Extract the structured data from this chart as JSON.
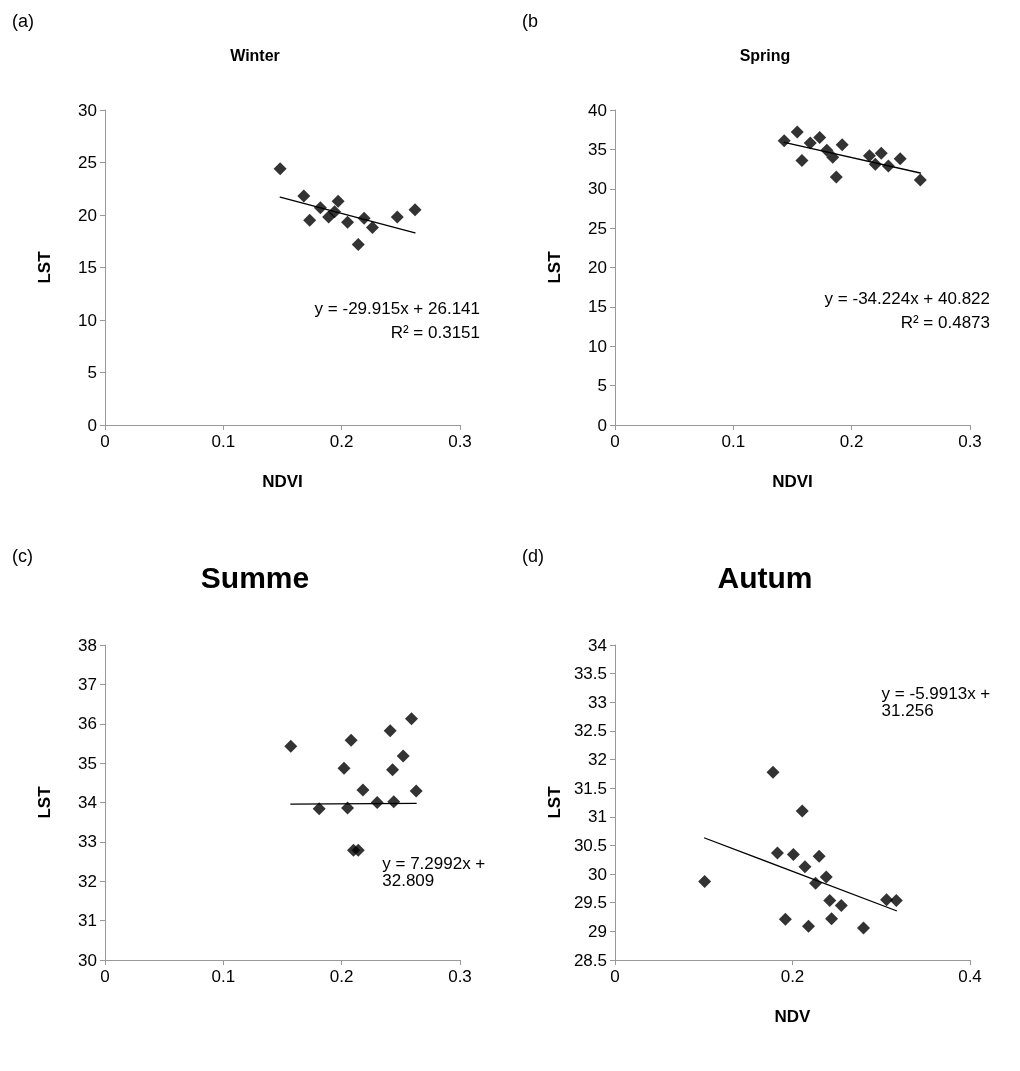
{
  "chart_data": [
    {
      "type": "scatter",
      "title": "Winter",
      "xlabel": "NDVI",
      "ylabel": "LST",
      "xlim": [
        0,
        0.3
      ],
      "xticks": [
        0,
        0.1,
        0.2,
        0.3
      ],
      "ylim": [
        0,
        30
      ],
      "yticks": [
        0,
        5,
        10,
        15,
        20,
        25,
        30
      ],
      "annotations": [
        "(a)",
        "y = -29.915x + 26.141",
        "R² = 0.3151"
      ],
      "series": [
        {
          "marker": "diamond",
          "color": "#000000",
          "x": [
            0.148,
            0.168,
            0.173,
            0.182,
            0.189,
            0.194,
            0.197,
            0.205,
            0.214,
            0.219,
            0.226,
            0.247,
            0.262
          ],
          "values": [
            24.4,
            21.8,
            19.5,
            20.7,
            19.8,
            20.3,
            21.3,
            19.3,
            17.2,
            19.7,
            18.8,
            19.8,
            20.5
          ]
        },
        {
          "type": "line",
          "marker": "none",
          "color": "#000000",
          "x": [
            0.148,
            0.262
          ],
          "values": [
            21.7,
            18.3
          ]
        }
      ]
    },
    {
      "type": "scatter",
      "title": "Spring",
      "xlabel": "NDVI",
      "ylabel": "LST",
      "xlim": [
        0,
        0.3
      ],
      "xticks": [
        0,
        0.1,
        0.2,
        0.3
      ],
      "ylim": [
        0,
        40
      ],
      "yticks": [
        0,
        5,
        10,
        15,
        20,
        25,
        30,
        35,
        40
      ],
      "annotations": [
        "(b",
        "y = -34.224x + 40.822",
        "R² = 0.4873"
      ],
      "series": [
        {
          "marker": "diamond",
          "color": "#000000",
          "x": [
            0.143,
            0.154,
            0.158,
            0.165,
            0.173,
            0.179,
            0.184,
            0.187,
            0.192,
            0.215,
            0.22,
            0.225,
            0.231,
            0.241,
            0.258
          ],
          "values": [
            36.1,
            37.2,
            33.6,
            35.8,
            36.5,
            34.9,
            34.0,
            31.5,
            35.6,
            34.2,
            33.1,
            34.5,
            32.9,
            33.8,
            31.1
          ]
        },
        {
          "type": "line",
          "marker": "none",
          "color": "#000000",
          "x": [
            0.143,
            0.258
          ],
          "values": [
            35.9,
            32.0
          ]
        }
      ]
    },
    {
      "type": "scatter",
      "title": "Summe",
      "ylabel": "LST",
      "xlim": [
        0,
        0.3
      ],
      "xticks": [
        0,
        0.1,
        0.2,
        0.3
      ],
      "ylim": [
        30,
        38
      ],
      "yticks": [
        30,
        31,
        32,
        33,
        34,
        35,
        36,
        37,
        38
      ],
      "annotations": [
        "(c)",
        "y = 7.2992x + 32.809"
      ],
      "series": [
        {
          "marker": "diamond",
          "color": "#000000",
          "x": [
            0.157,
            0.181,
            0.202,
            0.203,
            0.205,
            0.208,
            0.21,
            0.214,
            0.218,
            0.23,
            0.241,
            0.243,
            0.244,
            0.252,
            0.259,
            0.263
          ],
          "values": [
            35.43,
            33.84,
            34.87,
            null,
            33.86,
            35.58,
            32.79,
            32.79,
            34.32,
            34.0,
            35.82,
            34.83,
            34.02,
            35.18,
            36.13,
            34.29
          ]
        },
        {
          "type": "line",
          "marker": "none",
          "color": "#000000",
          "x": [
            0.157,
            0.263
          ],
          "values": [
            33.96,
            33.98
          ]
        }
      ]
    },
    {
      "type": "scatter",
      "title": "Autum",
      "xlabel": "NDV",
      "ylabel": "LST",
      "xlim": [
        0,
        0.4
      ],
      "xticks": [
        0,
        0.2,
        0.4
      ],
      "ylim": [
        28.5,
        34
      ],
      "yticks": [
        28.5,
        29,
        29.5,
        30,
        30.5,
        31,
        31.5,
        32,
        32.5,
        33,
        33.5,
        34
      ],
      "annotations": [
        "(d)",
        "y = -5.9913x + 31.256"
      ],
      "series": [
        {
          "marker": "diamond",
          "color": "#000000",
          "x": [
            0.101,
            0.178,
            0.183,
            0.192,
            0.201,
            0.211,
            0.214,
            0.218,
            0.226,
            0.23,
            0.238,
            0.242,
            0.244,
            0.255,
            0.28,
            0.306,
            0.317
          ],
          "values": [
            29.87,
            31.78,
            30.37,
            29.21,
            30.34,
            31.1,
            30.13,
            29.09,
            29.84,
            30.31,
            29.95,
            29.54,
            29.22,
            29.45,
            29.06,
            29.55,
            29.54
          ]
        },
        {
          "type": "line",
          "marker": "none",
          "color": "#000000",
          "x": [
            0.101,
            0.317
          ],
          "values": [
            30.63,
            29.36
          ]
        }
      ]
    }
  ]
}
